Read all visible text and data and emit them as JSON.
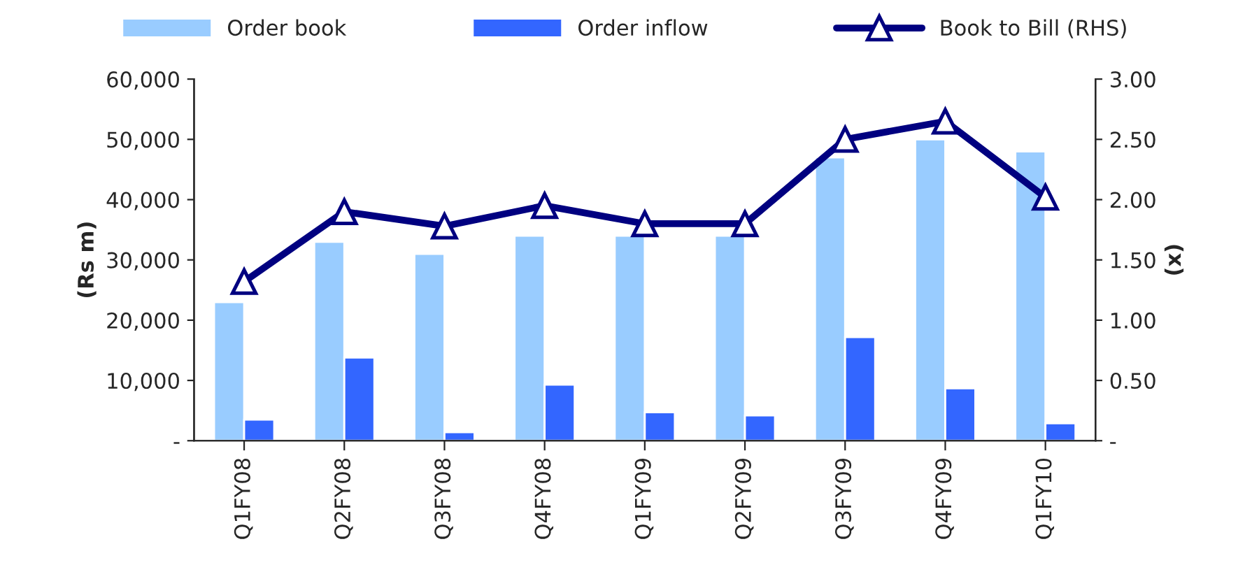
{
  "chart_data": {
    "type": "bar",
    "categories": [
      "Q1FY08",
      "Q2FY08",
      "Q3FY08",
      "Q4FY08",
      "Q1FY09",
      "Q2FY09",
      "Q3FY09",
      "Q4FY09",
      "Q1FY10"
    ],
    "series": [
      {
        "name": "Order book",
        "color": "#99ccff",
        "values": [
          23000,
          33000,
          31000,
          34000,
          34000,
          34000,
          47000,
          50000,
          48000
        ]
      },
      {
        "name": "Order inflow",
        "color": "#3366ff",
        "values": [
          3500,
          13800,
          1400,
          9300,
          4700,
          4200,
          17200,
          8700,
          2900
        ]
      },
      {
        "name": "Book to Bill (RHS)",
        "type": "line",
        "axis": "y2",
        "color": "#000080",
        "marker": "triangle",
        "values": [
          1.32,
          1.9,
          1.78,
          1.95,
          1.8,
          1.8,
          2.5,
          2.65,
          2.02
        ]
      }
    ],
    "ylabel": "(Rs m)",
    "y2label": "(x)",
    "ylim": [
      0,
      60000
    ],
    "yticks": [
      {
        "value": 0,
        "label": "-"
      },
      {
        "value": 10000,
        "label": "10,000"
      },
      {
        "value": 20000,
        "label": "20,000"
      },
      {
        "value": 30000,
        "label": "30,000"
      },
      {
        "value": 40000,
        "label": "40,000"
      },
      {
        "value": 50000,
        "label": "50,000"
      },
      {
        "value": 60000,
        "label": "60,000"
      }
    ],
    "y2lim": [
      0,
      3
    ],
    "y2ticks": [
      {
        "value": 0,
        "label": "-"
      },
      {
        "value": 0.5,
        "label": "0.50"
      },
      {
        "value": 1,
        "label": "1.00"
      },
      {
        "value": 1.5,
        "label": "1.50"
      },
      {
        "value": 2,
        "label": "2.00"
      },
      {
        "value": 2.5,
        "label": "2.50"
      },
      {
        "value": 3,
        "label": "3.00"
      }
    ],
    "grid": false,
    "legend": "top"
  }
}
